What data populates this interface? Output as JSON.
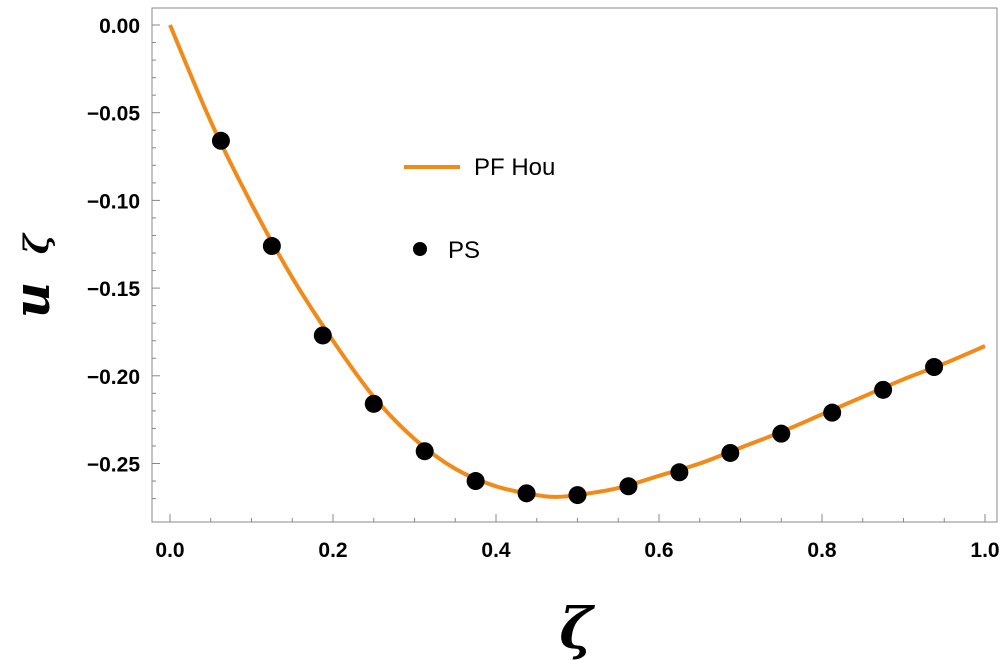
{
  "chart_data": {
    "type": "line",
    "xlabel": "ζ",
    "ylabel_main": "u",
    "ylabel_sub": "ζ",
    "xlim": [
      0.0,
      1.0
    ],
    "ylim": [
      -0.28,
      0.0
    ],
    "x_ticks": [
      0.0,
      0.2,
      0.4,
      0.6,
      0.8,
      1.0
    ],
    "x_tick_labels": [
      "0.0",
      "0.2",
      "0.4",
      "0.6",
      "0.8",
      "1.0"
    ],
    "y_ticks": [
      0.0,
      -0.05,
      -0.1,
      -0.15,
      -0.2,
      -0.25
    ],
    "y_tick_labels": [
      "0.00",
      "−0.05",
      "−0.10",
      "−0.15",
      "−0.20",
      "−0.25"
    ],
    "grid": false,
    "legend_position": "upper-center",
    "series": [
      {
        "name": "PF Hou",
        "style": "line",
        "color": "#F28A19",
        "x": [
          0.0,
          0.05,
          0.1,
          0.15,
          0.2,
          0.25,
          0.3,
          0.35,
          0.4,
          0.45,
          0.475,
          0.5,
          0.55,
          0.6,
          0.65,
          0.7,
          0.75,
          0.8,
          0.85,
          0.9,
          0.95,
          1.0
        ],
        "y": [
          0.0,
          -0.055,
          -0.102,
          -0.144,
          -0.18,
          -0.212,
          -0.236,
          -0.253,
          -0.263,
          -0.268,
          -0.269,
          -0.268,
          -0.264,
          -0.257,
          -0.25,
          -0.241,
          -0.232,
          -0.222,
          -0.212,
          -0.202,
          -0.193,
          -0.183
        ]
      },
      {
        "name": "PS",
        "style": "scatter",
        "color": "#000000",
        "x": [
          0.0625,
          0.125,
          0.1875,
          0.25,
          0.3125,
          0.375,
          0.4375,
          0.5,
          0.5625,
          0.625,
          0.6875,
          0.75,
          0.8125,
          0.875,
          0.9375
        ],
        "y": [
          -0.066,
          -0.126,
          -0.177,
          -0.216,
          -0.243,
          -0.26,
          -0.267,
          -0.268,
          -0.263,
          -0.255,
          -0.244,
          -0.233,
          -0.221,
          -0.208,
          -0.195
        ]
      }
    ]
  }
}
